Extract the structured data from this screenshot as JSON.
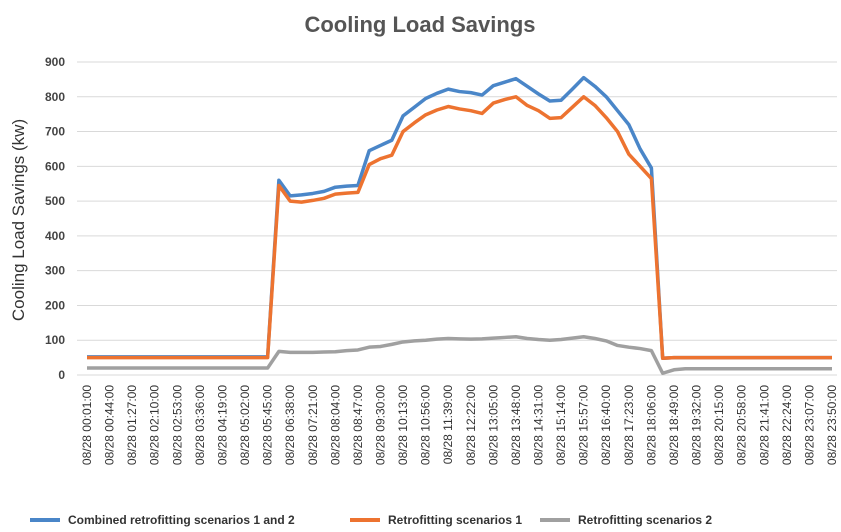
{
  "chart_data": {
    "type": "line",
    "title": "Cooling Load Savings",
    "y_label": "Cooling Load Savings (kw)",
    "categories": [
      "08/28 00:01:00",
      null,
      "08/28 00:44:00",
      null,
      "08/28 01:27:00",
      null,
      "08/28 02:10:00",
      null,
      "08/28 02:53:00",
      null,
      "08/28 03:36:00",
      null,
      "08/28 04:19:00",
      null,
      "08/28 05:02:00",
      null,
      "08/28 05:45:00",
      null,
      "08/28 06:38:00",
      null,
      "08/28 07:21:00",
      null,
      "08/28 08:04:00",
      null,
      "08/28 08:47:00",
      null,
      "08/28 09:30:00",
      null,
      "08/28 10:13:00",
      null,
      "08/28 10:56:00",
      null,
      "08/28 11:39:00",
      null,
      "08/28 12:22:00",
      null,
      "08/28 13:05:00",
      null,
      "08/28 13:48:00",
      null,
      "08/28 14:31:00",
      null,
      "08/28 15:14:00",
      null,
      "08/28 15:57:00",
      null,
      "08/28 16:40:00",
      null,
      "08/28 17:23:00",
      null,
      "08/28 18:06:00",
      null,
      "08/28 18:49:00",
      null,
      "08/28 19:32:00",
      null,
      "08/28 20:15:00",
      null,
      "08/28 20:58:00",
      null,
      "08/28 21:41:00",
      null,
      "08/28 22:24:00",
      null,
      "08/28 23:07:00",
      null,
      "08/28 23:50:00"
    ],
    "series": [
      {
        "name": "Combined retrofitting scenarios 1 and 2",
        "color": "#4a86c8",
        "values": [
          52,
          52,
          52,
          52,
          52,
          52,
          52,
          52,
          52,
          52,
          52,
          52,
          52,
          52,
          52,
          52,
          52,
          560,
          515,
          518,
          522,
          528,
          540,
          543,
          545,
          645,
          660,
          675,
          745,
          770,
          795,
          810,
          822,
          815,
          812,
          805,
          832,
          842,
          852,
          830,
          808,
          788,
          790,
          822,
          855,
          830,
          800,
          760,
          720,
          650,
          595,
          48,
          50,
          50,
          50,
          50,
          50,
          50,
          50,
          50,
          50,
          50,
          50,
          50,
          50,
          50,
          50
        ]
      },
      {
        "name": "Retrofitting scenarios 1",
        "color": "#ed7330",
        "values": [
          50,
          50,
          50,
          50,
          50,
          50,
          50,
          50,
          50,
          50,
          50,
          50,
          50,
          50,
          50,
          50,
          50,
          545,
          500,
          497,
          502,
          508,
          520,
          523,
          525,
          605,
          622,
          632,
          700,
          725,
          748,
          762,
          772,
          765,
          760,
          752,
          782,
          792,
          800,
          775,
          760,
          738,
          740,
          770,
          800,
          775,
          740,
          700,
          635,
          600,
          565,
          48,
          50,
          50,
          50,
          50,
          50,
          50,
          50,
          50,
          50,
          50,
          50,
          50,
          50,
          50,
          50
        ]
      },
      {
        "name": "Retrofitting scenarios 2",
        "color": "#a0a0a0",
        "values": [
          20,
          20,
          20,
          20,
          20,
          20,
          20,
          20,
          20,
          20,
          20,
          20,
          20,
          20,
          20,
          20,
          20,
          68,
          65,
          65,
          65,
          66,
          67,
          70,
          72,
          80,
          82,
          88,
          95,
          98,
          100,
          103,
          105,
          104,
          103,
          104,
          106,
          108,
          110,
          105,
          102,
          100,
          102,
          106,
          110,
          105,
          98,
          85,
          80,
          76,
          70,
          5,
          15,
          18,
          18,
          18,
          18,
          18,
          18,
          18,
          18,
          18,
          18,
          18,
          18,
          18,
          18
        ]
      }
    ],
    "ylim": [
      0,
      900
    ],
    "yticks": [
      0,
      100,
      200,
      300,
      400,
      500,
      600,
      700,
      800,
      900
    ],
    "grid": true,
    "legend": "bottom"
  }
}
